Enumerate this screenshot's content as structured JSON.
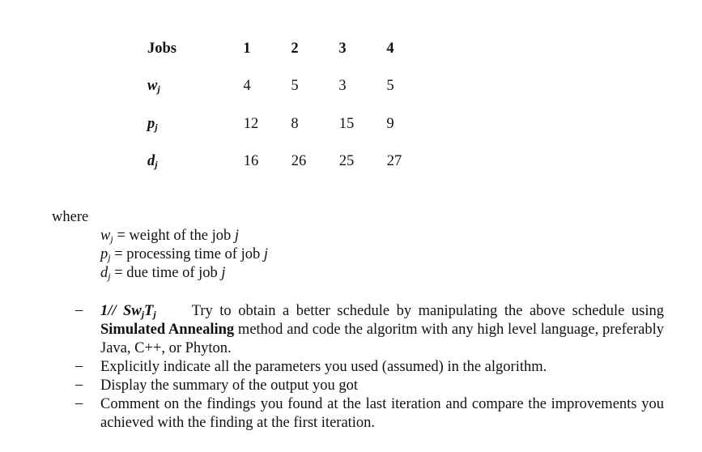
{
  "table": {
    "header_label": "Jobs",
    "columns": [
      "1",
      "2",
      "3",
      "4"
    ],
    "rows": [
      {
        "symbol": "w",
        "sub": "j",
        "values": [
          "4",
          "5",
          "3",
          "5"
        ]
      },
      {
        "symbol": "p",
        "sub": "j",
        "values": [
          "12",
          "8",
          "15",
          "9"
        ]
      },
      {
        "symbol": "d",
        "sub": "j",
        "values": [
          "16",
          "26",
          "25",
          "27"
        ]
      }
    ]
  },
  "where_label": "where",
  "definitions": [
    {
      "symbol": "w",
      "sub": "j",
      "text": " = weight of the job ",
      "var": "j"
    },
    {
      "symbol": "p",
      "sub": "j",
      "text": " = processing time of job ",
      "var": "j"
    },
    {
      "symbol": "d",
      "sub": "j",
      "text": " = due time of job ",
      "var": "j"
    }
  ],
  "bullets": {
    "dash": "–",
    "problem": {
      "a": "1// Sw",
      "a_sub": "j",
      "b": "T",
      "b_sub": "j"
    },
    "item1_text": "Try to obtain a better schedule by manipulating the above schedule using",
    "item1_bold": "Simulated Annealing",
    "item1_rest": " method and code the algoritm with any high level language, preferably Java, C++, or Phyton.",
    "item2": "Explicitly indicate all the parameters you used (assumed) in the algorithm.",
    "item3": "Display the summary of the output you got",
    "item4": "Comment on the findings you found at the last iteration and compare the improvements you achieved with the finding at the first iteration."
  }
}
